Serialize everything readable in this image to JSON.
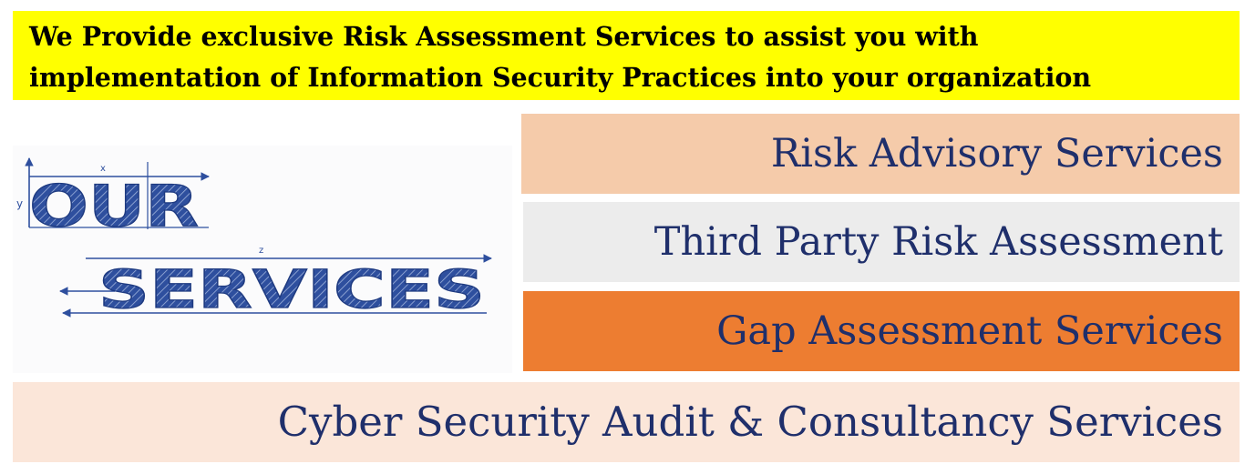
{
  "banner": {
    "line1": "We Provide exclusive Risk Assessment Services to assist you with",
    "line2": "implementation of Information Security Practices into your organization"
  },
  "logo": {
    "word1": "OUR",
    "word2": "SERVICES",
    "axis_x": "x",
    "axis_y": "y",
    "axis_z": "z",
    "color": "#2e4f9e"
  },
  "services": {
    "risk_advisory": "Risk Advisory Services",
    "third_party": "Third Party Risk Assessment",
    "gap_assessment": "Gap Assessment Services",
    "cyber_audit": "Cyber Security Audit & Consultancy Services"
  },
  "colors": {
    "banner": "#ffff00",
    "text_navy": "#1f2f6b",
    "peach": "#f5cbaa",
    "grey": "#ececec",
    "orange": "#ed7d31",
    "light_peach": "#fbe6d9"
  }
}
